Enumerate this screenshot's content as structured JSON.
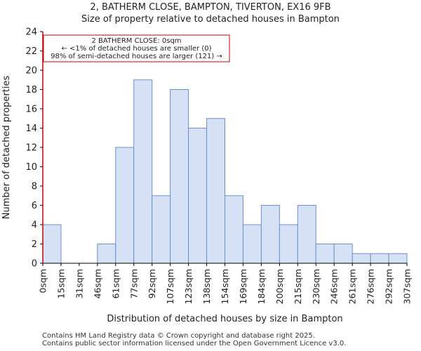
{
  "titles": {
    "line1": "2, BATHERM CLOSE, BAMPTON, TIVERTON, EX16 9FB",
    "line2": "Size of property relative to detached houses in Bampton"
  },
  "chart_data": {
    "type": "bar",
    "xlabel": "Distribution of detached houses by size in Bampton",
    "ylabel": "Number of detached properties",
    "ylim": [
      0,
      24
    ],
    "yticks": [
      0,
      2,
      4,
      6,
      8,
      10,
      12,
      14,
      16,
      18,
      20,
      22,
      24
    ],
    "bin_edges": [
      0,
      15,
      31,
      46,
      61,
      77,
      92,
      107,
      123,
      138,
      154,
      169,
      184,
      200,
      215,
      230,
      246,
      261,
      276,
      292,
      307
    ],
    "xtick_labels": [
      "0sqm",
      "15sqm",
      "31sqm",
      "46sqm",
      "61sqm",
      "77sqm",
      "92sqm",
      "107sqm",
      "123sqm",
      "138sqm",
      "154sqm",
      "169sqm",
      "184sqm",
      "200sqm",
      "215sqm",
      "230sqm",
      "246sqm",
      "261sqm",
      "276sqm",
      "292sqm",
      "307sqm"
    ],
    "values": [
      4,
      0,
      0,
      2,
      12,
      19,
      7,
      18,
      14,
      15,
      7,
      4,
      6,
      4,
      6,
      2,
      2,
      1,
      1,
      1
    ],
    "bar_color": "#d6e1f5",
    "bar_edge_color": "#6a8fd0",
    "marker_color": "#cc0000",
    "marker_value": 0,
    "annotation": {
      "line1": "2 BATHERM CLOSE: 0sqm",
      "line2": "← <1% of detached houses are smaller (0)",
      "line3": "98% of semi-detached houses are larger (121) →"
    }
  },
  "footer": {
    "line1": "Contains HM Land Registry data © Crown copyright and database right 2025.",
    "line2": "Contains public sector information licensed under the Open Government Licence v3.0."
  }
}
